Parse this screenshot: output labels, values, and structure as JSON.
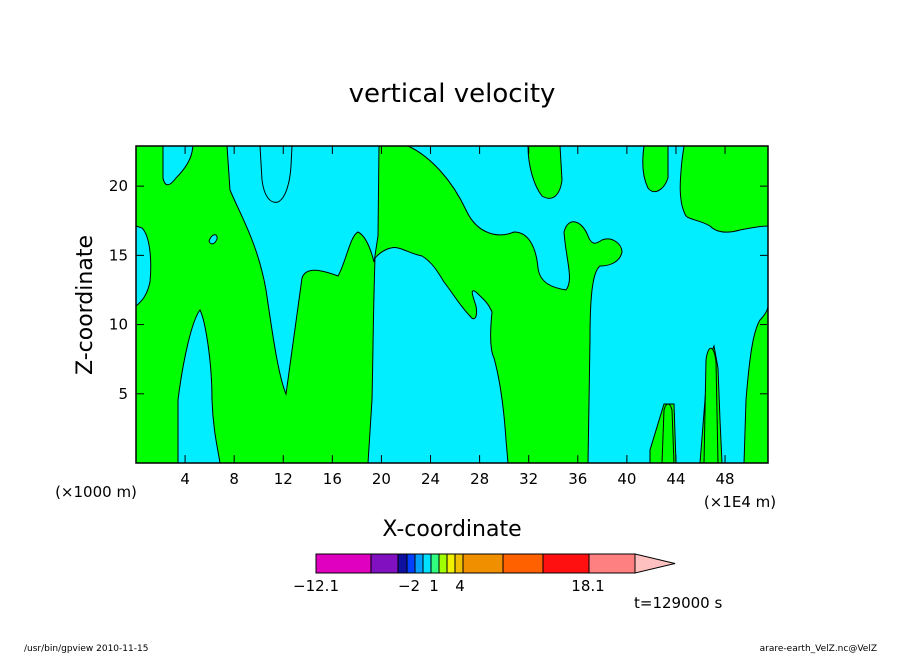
{
  "chart_data": {
    "type": "heatmap",
    "title": "vertical velocity",
    "xlabel": "X-coordinate",
    "ylabel": "Z-coordinate",
    "x_unit_left": "(×1000 m)",
    "x_unit_right": "(×1E4 m)",
    "xlim": [
      0,
      51.5
    ],
    "ylim": [
      0,
      22.9
    ],
    "x_ticks": [
      4,
      8,
      12,
      16,
      20,
      24,
      28,
      32,
      36,
      40,
      44,
      48
    ],
    "y_ticks": [
      5,
      10,
      15,
      20
    ],
    "time_label": "t=129000 s",
    "colors": {
      "positive": "#00ff00",
      "negative": "#00eeff"
    },
    "colorbar": {
      "min_label": "−12.1",
      "max_label": "18.1",
      "tick_labels": [
        "−2",
        "1",
        "4"
      ],
      "colors": [
        "#e000c0",
        "#8010c0",
        "#1010a0",
        "#0040ff",
        "#00a0ff",
        "#00e0ff",
        "#30ff80",
        "#a0ff00",
        "#f0f000",
        "#f0c000",
        "#f09000",
        "#ff6000",
        "#ff1010",
        "#ff8080",
        "#ffc0c0"
      ]
    }
  },
  "footer": {
    "left": "/usr/bin/gpview   2010-11-15",
    "right": "arare-earth_VelZ.nc@VelZ"
  }
}
